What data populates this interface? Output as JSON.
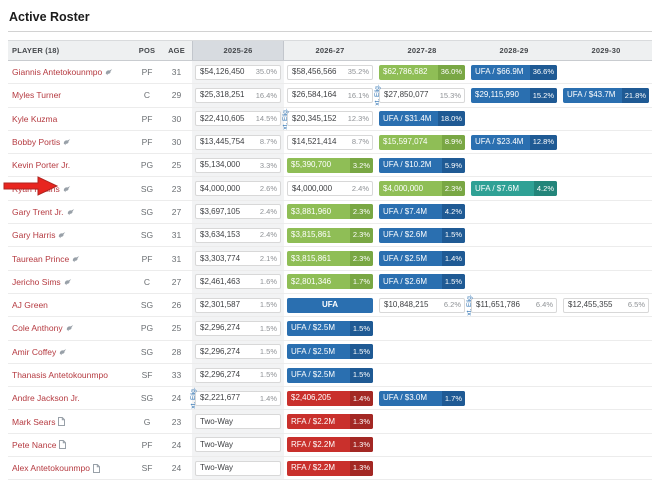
{
  "page": {
    "title": "Active Roster"
  },
  "annotation": {
    "arrow_target": "Ryan Rollins row"
  },
  "colors": {
    "green": "#8fbe56",
    "green_dark": "#79a744",
    "blue": "#2a6fb0",
    "blue_dark": "#1f5a94",
    "teal": "#2fa195",
    "teal_dark": "#23857a",
    "red": "#c9302c",
    "red_dark": "#a32824",
    "player_link": "#b53a40",
    "selected_column_bg": "#d7dbe0",
    "arrow_red": "#e8251f"
  },
  "table": {
    "columns": [
      {
        "label": "PLAYER (18)"
      },
      {
        "label": "POS"
      },
      {
        "label": "AGE"
      },
      {
        "label": "2025-26",
        "selected": true
      },
      {
        "label": "2026-27"
      },
      {
        "label": "2027-28"
      },
      {
        "label": "2028-29"
      },
      {
        "label": "2029-30"
      }
    ],
    "ext_label": "xt. Elig.",
    "rows": [
      {
        "name": "Giannis Antetokounmpo",
        "icon": "bird",
        "pos": "PF",
        "age": "31",
        "cells": [
          {
            "type": "plain",
            "value": "$54,126,450",
            "pct": "35.0%"
          },
          {
            "type": "plain",
            "value": "$58,456,566",
            "pct": "35.2%"
          },
          {
            "type": "green",
            "value": "$62,786,682",
            "pct": "36.0%"
          },
          {
            "type": "blue",
            "value": "UFA / $66.9M",
            "pct": "36.6%"
          },
          {
            "type": "empty"
          }
        ]
      },
      {
        "name": "Myles Turner",
        "icon": null,
        "pos": "C",
        "age": "29",
        "cells": [
          {
            "type": "plain",
            "value": "$25,318,251",
            "pct": "16.4%"
          },
          {
            "type": "plain",
            "value": "$26,584,164",
            "pct": "16.1%"
          },
          {
            "type": "plain",
            "value": "$27,850,077",
            "pct": "15.3%",
            "ext": true
          },
          {
            "type": "blue",
            "value": "$29,115,990",
            "pct": "15.2%"
          },
          {
            "type": "blue",
            "value": "UFA / $43.7M",
            "pct": "21.8%"
          }
        ]
      },
      {
        "name": "Kyle Kuzma",
        "icon": null,
        "pos": "PF",
        "age": "30",
        "cells": [
          {
            "type": "plain",
            "value": "$22,410,605",
            "pct": "14.5%"
          },
          {
            "type": "plain",
            "value": "$20,345,152",
            "pct": "12.3%",
            "ext": true
          },
          {
            "type": "blue",
            "value": "UFA / $31.4M",
            "pct": "18.0%"
          },
          {
            "type": "empty"
          },
          {
            "type": "empty"
          }
        ]
      },
      {
        "name": "Bobby Portis",
        "icon": "bird",
        "pos": "PF",
        "age": "30",
        "cells": [
          {
            "type": "plain",
            "value": "$13,445,754",
            "pct": "8.7%"
          },
          {
            "type": "plain",
            "value": "$14,521,414",
            "pct": "8.7%"
          },
          {
            "type": "green",
            "value": "$15,597,074",
            "pct": "8.9%"
          },
          {
            "type": "blue",
            "value": "UFA / $23.4M",
            "pct": "12.8%"
          },
          {
            "type": "empty"
          }
        ]
      },
      {
        "name": "Kevin Porter Jr.",
        "icon": null,
        "pos": "PG",
        "age": "25",
        "cells": [
          {
            "type": "plain",
            "value": "$5,134,000",
            "pct": "3.3%"
          },
          {
            "type": "green",
            "value": "$5,390,700",
            "pct": "3.2%"
          },
          {
            "type": "blue",
            "value": "UFA / $10.2M",
            "pct": "5.9%"
          },
          {
            "type": "empty"
          },
          {
            "type": "empty"
          }
        ]
      },
      {
        "name": "Ryan Rollins",
        "icon": "bird",
        "pos": "SG",
        "age": "23",
        "cells": [
          {
            "type": "plain",
            "value": "$4,000,000",
            "pct": "2.6%"
          },
          {
            "type": "plain",
            "value": "$4,000,000",
            "pct": "2.4%"
          },
          {
            "type": "green",
            "value": "$4,000,000",
            "pct": "2.3%"
          },
          {
            "type": "teal",
            "value": "UFA / $7.6M",
            "pct": "4.2%"
          },
          {
            "type": "empty"
          }
        ]
      },
      {
        "name": "Gary Trent Jr.",
        "icon": "bird",
        "pos": "SG",
        "age": "27",
        "cells": [
          {
            "type": "plain",
            "value": "$3,697,105",
            "pct": "2.4%"
          },
          {
            "type": "green",
            "value": "$3,881,960",
            "pct": "2.3%"
          },
          {
            "type": "blue",
            "value": "UFA / $7.4M",
            "pct": "4.2%"
          },
          {
            "type": "empty"
          },
          {
            "type": "empty"
          }
        ]
      },
      {
        "name": "Gary Harris",
        "icon": "bird",
        "pos": "SG",
        "age": "31",
        "cells": [
          {
            "type": "plain",
            "value": "$3,634,153",
            "pct": "2.4%"
          },
          {
            "type": "green",
            "value": "$3,815,861",
            "pct": "2.3%"
          },
          {
            "type": "blue",
            "value": "UFA / $2.6M",
            "pct": "1.5%"
          },
          {
            "type": "empty"
          },
          {
            "type": "empty"
          }
        ]
      },
      {
        "name": "Taurean Prince",
        "icon": "bird",
        "pos": "PF",
        "age": "31",
        "cells": [
          {
            "type": "plain",
            "value": "$3,303,774",
            "pct": "2.1%"
          },
          {
            "type": "green",
            "value": "$3,815,861",
            "pct": "2.3%"
          },
          {
            "type": "blue",
            "value": "UFA / $2.5M",
            "pct": "1.4%"
          },
          {
            "type": "empty"
          },
          {
            "type": "empty"
          }
        ]
      },
      {
        "name": "Jericho Sims",
        "icon": "bird",
        "pos": "C",
        "age": "27",
        "cells": [
          {
            "type": "plain",
            "value": "$2,461,463",
            "pct": "1.6%"
          },
          {
            "type": "green",
            "value": "$2,801,346",
            "pct": "1.7%"
          },
          {
            "type": "blue",
            "value": "UFA / $2.6M",
            "pct": "1.5%"
          },
          {
            "type": "empty"
          },
          {
            "type": "empty"
          }
        ]
      },
      {
        "name": "AJ Green",
        "icon": null,
        "pos": "SG",
        "age": "26",
        "cells": [
          {
            "type": "plain",
            "value": "$2,301,587",
            "pct": "1.5%"
          },
          {
            "type": "ufa",
            "value": "UFA"
          },
          {
            "type": "plain",
            "value": "$10,848,215",
            "pct": "6.2%"
          },
          {
            "type": "plain",
            "value": "$11,651,786",
            "pct": "6.4%",
            "ext": true
          },
          {
            "type": "plain",
            "value": "$12,455,355",
            "pct": "6.5%"
          }
        ]
      },
      {
        "name": "Cole Anthony",
        "icon": "bird",
        "pos": "PG",
        "age": "25",
        "cells": [
          {
            "type": "plain",
            "value": "$2,296,274",
            "pct": "1.5%"
          },
          {
            "type": "blue",
            "value": "UFA / $2.5M",
            "pct": "1.5%"
          },
          {
            "type": "empty"
          },
          {
            "type": "empty"
          },
          {
            "type": "empty"
          }
        ]
      },
      {
        "name": "Amir Coffey",
        "icon": "bird",
        "pos": "SG",
        "age": "28",
        "cells": [
          {
            "type": "plain",
            "value": "$2,296,274",
            "pct": "1.5%"
          },
          {
            "type": "blue",
            "value": "UFA / $2.5M",
            "pct": "1.5%"
          },
          {
            "type": "empty"
          },
          {
            "type": "empty"
          },
          {
            "type": "empty"
          }
        ]
      },
      {
        "name": "Thanasis Antetokounmpo",
        "icon": null,
        "pos": "SF",
        "age": "33",
        "cells": [
          {
            "type": "plain",
            "value": "$2,296,274",
            "pct": "1.5%"
          },
          {
            "type": "blue",
            "value": "UFA / $2.5M",
            "pct": "1.5%"
          },
          {
            "type": "empty"
          },
          {
            "type": "empty"
          },
          {
            "type": "empty"
          }
        ]
      },
      {
        "name": "Andre Jackson Jr.",
        "icon": null,
        "pos": "SG",
        "age": "24",
        "cells": [
          {
            "type": "plain",
            "value": "$2,221,677",
            "pct": "1.4%",
            "ext": true
          },
          {
            "type": "red",
            "value": "$2,406,205",
            "pct": "1.4%"
          },
          {
            "type": "blue",
            "value": "UFA / $3.0M",
            "pct": "1.7%"
          },
          {
            "type": "empty"
          },
          {
            "type": "empty"
          }
        ]
      },
      {
        "name": "Mark Sears",
        "icon": "doc",
        "pos": "G",
        "age": "23",
        "cells": [
          {
            "type": "twoway",
            "value": "Two-Way"
          },
          {
            "type": "red",
            "value": "RFA / $2.2M",
            "pct": "1.3%"
          },
          {
            "type": "empty"
          },
          {
            "type": "empty"
          },
          {
            "type": "empty"
          }
        ]
      },
      {
        "name": "Pete Nance",
        "icon": "doc",
        "pos": "PF",
        "age": "24",
        "cells": [
          {
            "type": "twoway",
            "value": "Two-Way"
          },
          {
            "type": "red",
            "value": "RFA / $2.2M",
            "pct": "1.3%"
          },
          {
            "type": "empty"
          },
          {
            "type": "empty"
          },
          {
            "type": "empty"
          }
        ]
      },
      {
        "name": "Alex Antetokounmpo",
        "icon": "doc",
        "pos": "SF",
        "age": "24",
        "cells": [
          {
            "type": "twoway",
            "value": "Two-Way"
          },
          {
            "type": "red",
            "value": "RFA / $2.2M",
            "pct": "1.3%"
          },
          {
            "type": "empty"
          },
          {
            "type": "empty"
          },
          {
            "type": "empty"
          }
        ]
      }
    ]
  }
}
